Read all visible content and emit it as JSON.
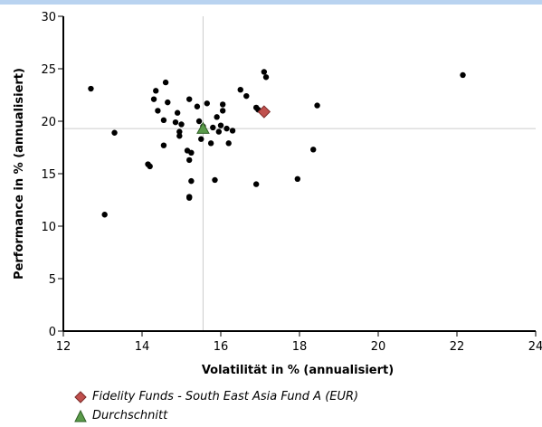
{
  "chart_data": {
    "type": "scatter",
    "xlabel": "Volatilität in % (annualisiert)",
    "ylabel": "Performance in % (annualisiert)",
    "xlim": [
      12,
      24
    ],
    "ylim": [
      0,
      30
    ],
    "xticks": [
      12,
      14,
      16,
      18,
      20,
      22,
      24
    ],
    "yticks": [
      0,
      5,
      10,
      15,
      20,
      25,
      30
    ],
    "average_crosshair": {
      "x": 15.55,
      "y": 19.3
    },
    "legend_position": "bottom-left",
    "colors": {
      "points": "#000000",
      "fund": "#c0504d",
      "average": "#5a9a4a",
      "crosshair": "#cccccc"
    },
    "series": [
      {
        "marker": "circle",
        "points": [
          {
            "x": 12.7,
            "y": 23.1
          },
          {
            "x": 13.05,
            "y": 11.1
          },
          {
            "x": 13.3,
            "y": 18.9
          },
          {
            "x": 14.15,
            "y": 15.9
          },
          {
            "x": 14.2,
            "y": 15.7
          },
          {
            "x": 14.3,
            "y": 22.1
          },
          {
            "x": 14.35,
            "y": 22.9
          },
          {
            "x": 14.4,
            "y": 21.0
          },
          {
            "x": 14.55,
            "y": 20.1
          },
          {
            "x": 14.55,
            "y": 17.7
          },
          {
            "x": 14.6,
            "y": 23.7
          },
          {
            "x": 14.65,
            "y": 21.8
          },
          {
            "x": 14.85,
            "y": 19.9
          },
          {
            "x": 14.9,
            "y": 20.8
          },
          {
            "x": 14.95,
            "y": 19.0
          },
          {
            "x": 14.95,
            "y": 18.6
          },
          {
            "x": 15.0,
            "y": 19.7
          },
          {
            "x": 15.15,
            "y": 17.2
          },
          {
            "x": 15.2,
            "y": 22.1
          },
          {
            "x": 15.2,
            "y": 16.3
          },
          {
            "x": 15.2,
            "y": 12.8
          },
          {
            "x": 15.25,
            "y": 14.3
          },
          {
            "x": 15.2,
            "y": 12.7
          },
          {
            "x": 15.25,
            "y": 17.0
          },
          {
            "x": 15.4,
            "y": 21.4
          },
          {
            "x": 15.45,
            "y": 20.0
          },
          {
            "x": 15.5,
            "y": 18.3
          },
          {
            "x": 15.55,
            "y": 19.5
          },
          {
            "x": 15.65,
            "y": 21.7
          },
          {
            "x": 15.75,
            "y": 17.9
          },
          {
            "x": 15.8,
            "y": 19.4
          },
          {
            "x": 15.85,
            "y": 14.4
          },
          {
            "x": 15.9,
            "y": 20.4
          },
          {
            "x": 15.95,
            "y": 19.0
          },
          {
            "x": 16.0,
            "y": 19.6
          },
          {
            "x": 16.05,
            "y": 21.0
          },
          {
            "x": 16.05,
            "y": 21.6
          },
          {
            "x": 16.15,
            "y": 19.3
          },
          {
            "x": 16.2,
            "y": 17.9
          },
          {
            "x": 16.3,
            "y": 19.1
          },
          {
            "x": 16.5,
            "y": 23.0
          },
          {
            "x": 16.65,
            "y": 22.4
          },
          {
            "x": 16.9,
            "y": 14.0
          },
          {
            "x": 16.9,
            "y": 21.3
          },
          {
            "x": 16.95,
            "y": 21.1
          },
          {
            "x": 17.1,
            "y": 24.7
          },
          {
            "x": 17.15,
            "y": 24.2
          },
          {
            "x": 17.95,
            "y": 14.5
          },
          {
            "x": 18.35,
            "y": 17.3
          },
          {
            "x": 18.45,
            "y": 21.5
          },
          {
            "x": 22.15,
            "y": 24.4
          }
        ]
      },
      {
        "name": "Fidelity Funds - South East Asia Fund A (EUR)",
        "marker": "diamond",
        "points": [
          {
            "x": 17.1,
            "y": 20.9
          }
        ]
      },
      {
        "name": "Durchschnitt",
        "marker": "triangle",
        "points": [
          {
            "x": 15.55,
            "y": 19.3
          }
        ]
      }
    ]
  }
}
